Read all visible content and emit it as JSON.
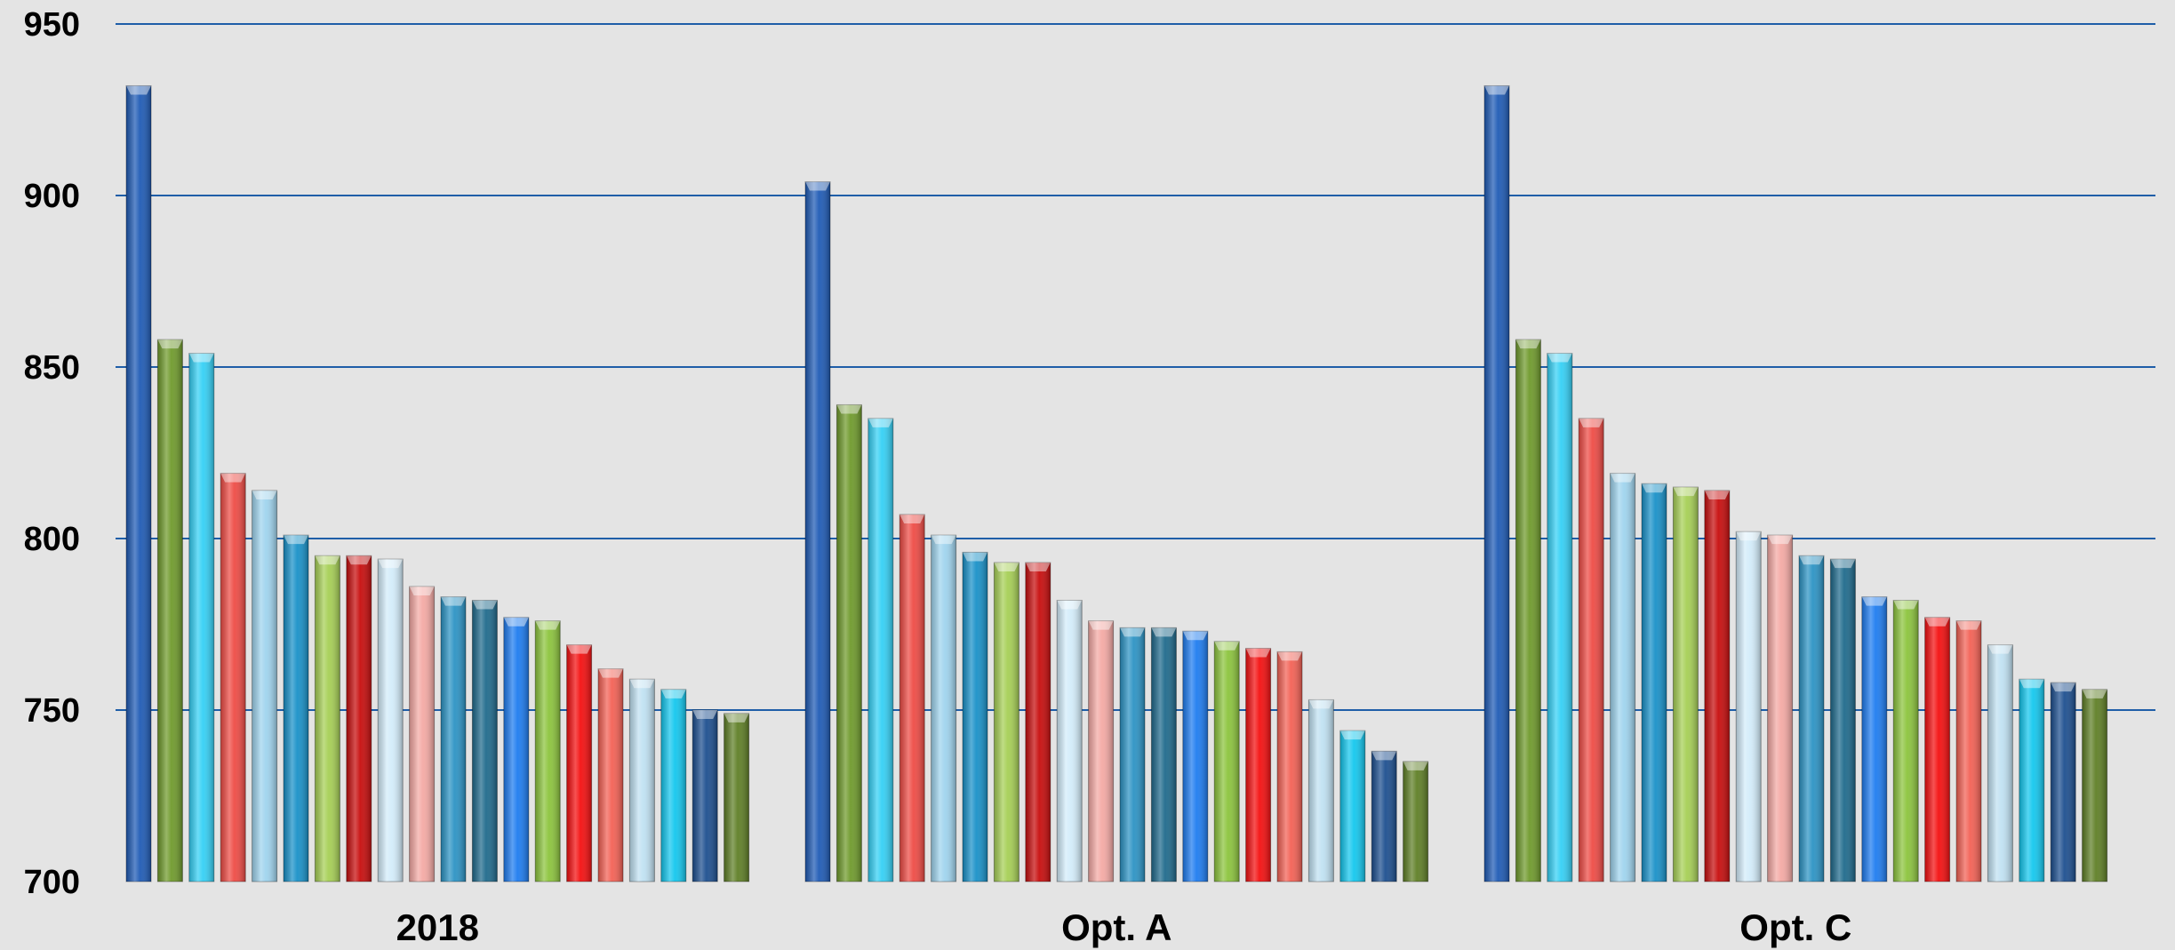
{
  "chart_data": {
    "type": "bar",
    "title": "",
    "xlabel": "",
    "ylabel": "",
    "ylim": [
      700,
      950
    ],
    "yticks": [
      700,
      750,
      800,
      850,
      900,
      950
    ],
    "grid": true,
    "legend": "none",
    "categories": [
      "2018",
      "Opt. A",
      "Opt. C"
    ],
    "groups": [
      {
        "category": "2018",
        "values": [
          932,
          858,
          854,
          819,
          814,
          801,
          795,
          795,
          794,
          786,
          783,
          782,
          777,
          776,
          769,
          762,
          759,
          756,
          750,
          749
        ]
      },
      {
        "category": "Opt. A",
        "values": [
          904,
          839,
          835,
          807,
          801,
          796,
          793,
          793,
          782,
          776,
          774,
          774,
          773,
          770,
          768,
          767,
          753,
          744,
          738,
          735
        ]
      },
      {
        "category": "Opt. C",
        "values": [
          932,
          858,
          854,
          835,
          819,
          816,
          815,
          814,
          802,
          801,
          795,
          794,
          783,
          782,
          777,
          776,
          769,
          759,
          758,
          756
        ]
      }
    ],
    "bar_colors": [
      "#1f5bb5",
      "#6f9a2c",
      "#35d0f5",
      "#ee4b45",
      "#9fd4ee",
      "#1991c8",
      "#a6cf55",
      "#c70d0d",
      "#d3ecfa",
      "#f4a9a4",
      "#2c93c4",
      "#1f6a8c",
      "#1e7cf0",
      "#8cc43d",
      "#f40f10",
      "#f36155",
      "#c0e1f2",
      "#14c7ee",
      "#1d4f8f",
      "#5f7f26"
    ]
  }
}
